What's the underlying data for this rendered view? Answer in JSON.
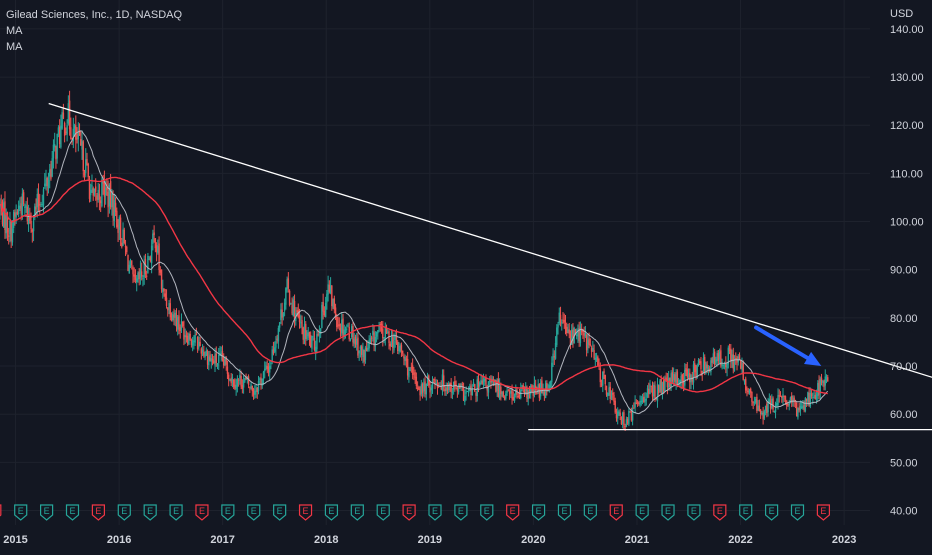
{
  "header": {
    "symbol_line": "Gilead Sciences, Inc., 1D, NASDAQ",
    "indicators": [
      "MA",
      "MA"
    ]
  },
  "chart_data": {
    "type": "line",
    "title": "Gilead Sciences, Inc., 1D, NASDAQ",
    "currency_label": "USD",
    "ylim": [
      37,
      146
    ],
    "xlim": [
      2014.85,
      2023.25
    ],
    "y_ticks": [
      {
        "value": 140,
        "label": "140.00"
      },
      {
        "value": 130,
        "label": "130.00"
      },
      {
        "value": 120,
        "label": "120.00"
      },
      {
        "value": 110,
        "label": "110.00"
      },
      {
        "value": 100,
        "label": "100.00"
      },
      {
        "value": 90,
        "label": "90.00"
      },
      {
        "value": 80,
        "label": "80.00"
      },
      {
        "value": 70,
        "label": "70.00"
      },
      {
        "value": 60,
        "label": "60.00"
      },
      {
        "value": 50,
        "label": "50.00"
      },
      {
        "value": 40,
        "label": "40.00"
      }
    ],
    "x_ticks": [
      {
        "value": 2015,
        "label": "2015"
      },
      {
        "value": 2016,
        "label": "2016"
      },
      {
        "value": 2017,
        "label": "2017"
      },
      {
        "value": 2018,
        "label": "2018"
      },
      {
        "value": 2019,
        "label": "2019"
      },
      {
        "value": 2020,
        "label": "2020"
      },
      {
        "value": 2021,
        "label": "2021"
      },
      {
        "value": 2022,
        "label": "2022"
      },
      {
        "value": 2023,
        "label": "2023"
      }
    ],
    "price_path": [
      [
        2014.85,
        103
      ],
      [
        2014.95,
        98
      ],
      [
        2015.05,
        104
      ],
      [
        2015.15,
        100
      ],
      [
        2015.3,
        108
      ],
      [
        2015.42,
        118
      ],
      [
        2015.5,
        122
      ],
      [
        2015.58,
        117
      ],
      [
        2015.66,
        113
      ],
      [
        2015.75,
        104
      ],
      [
        2015.85,
        107
      ],
      [
        2015.95,
        103
      ],
      [
        2016.05,
        95
      ],
      [
        2016.15,
        86
      ],
      [
        2016.25,
        90
      ],
      [
        2016.35,
        97
      ],
      [
        2016.42,
        85
      ],
      [
        2016.5,
        82
      ],
      [
        2016.6,
        78
      ],
      [
        2016.75,
        75
      ],
      [
        2016.9,
        71
      ],
      [
        2017.0,
        71
      ],
      [
        2017.1,
        67
      ],
      [
        2017.2,
        67
      ],
      [
        2017.3,
        65
      ],
      [
        2017.45,
        70
      ],
      [
        2017.62,
        86
      ],
      [
        2017.75,
        78
      ],
      [
        2017.88,
        74
      ],
      [
        2018.02,
        86
      ],
      [
        2018.12,
        79
      ],
      [
        2018.25,
        77
      ],
      [
        2018.35,
        72
      ],
      [
        2018.5,
        77
      ],
      [
        2018.62,
        76
      ],
      [
        2018.72,
        73
      ],
      [
        2018.82,
        68
      ],
      [
        2018.92,
        65
      ],
      [
        2019.05,
        67
      ],
      [
        2019.2,
        66
      ],
      [
        2019.35,
        64
      ],
      [
        2019.5,
        66
      ],
      [
        2019.62,
        66
      ],
      [
        2019.75,
        64
      ],
      [
        2019.9,
        64
      ],
      [
        2020.05,
        65
      ],
      [
        2020.15,
        66
      ],
      [
        2020.25,
        80
      ],
      [
        2020.35,
        76
      ],
      [
        2020.45,
        77
      ],
      [
        2020.55,
        74
      ],
      [
        2020.65,
        68
      ],
      [
        2020.75,
        64
      ],
      [
        2020.82,
        59
      ],
      [
        2020.92,
        59
      ],
      [
        2021.05,
        64
      ],
      [
        2021.2,
        65
      ],
      [
        2021.35,
        67
      ],
      [
        2021.5,
        68
      ],
      [
        2021.62,
        70
      ],
      [
        2021.75,
        71
      ],
      [
        2021.9,
        72
      ],
      [
        2022.0,
        70
      ],
      [
        2022.08,
        64
      ],
      [
        2022.2,
        60
      ],
      [
        2022.3,
        62
      ],
      [
        2022.42,
        63
      ],
      [
        2022.55,
        61
      ],
      [
        2022.68,
        64
      ],
      [
        2022.78,
        66
      ],
      [
        2022.85,
        68
      ]
    ],
    "series": [
      {
        "color": "#b2b5be",
        "smoothing": 20
      },
      {
        "color": "#f23645",
        "smoothing": 80
      }
    ],
    "annotations": {
      "resistance_line": {
        "start": [
          2015.32,
          124.5
        ],
        "end": [
          2024.25,
          65
        ],
        "color": "#ffffff"
      },
      "support_line": {
        "start": [
          2019.95,
          56.8
        ],
        "end": [
          2024.22,
          56.8
        ],
        "color": "#ffffff"
      },
      "arrow": {
        "start": [
          2022.15,
          78
        ],
        "end": [
          2022.78,
          70
        ],
        "color": "#2962ff"
      }
    },
    "earnings_markers": {
      "label": "E",
      "start": 2014.8,
      "end": 2022.85,
      "spacing": 0.25
    },
    "colors": {
      "up": "#26a69a",
      "down": "#ef5350",
      "background": "#131722",
      "axis_text": "#d1d4dc",
      "grid": "#1e222d"
    }
  }
}
